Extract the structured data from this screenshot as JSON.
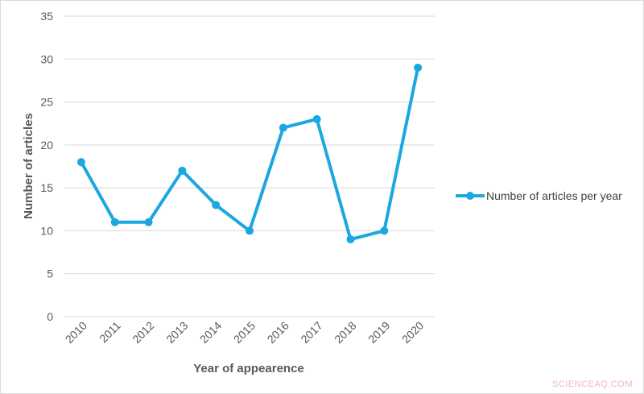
{
  "chart_data": {
    "type": "line",
    "title": "",
    "xlabel": "Year of appearence",
    "ylabel": "Number of articles",
    "categories": [
      "2010",
      "2011",
      "2012",
      "2013",
      "2014",
      "2015",
      "2016",
      "2017",
      "2018",
      "2019",
      "2020"
    ],
    "series": [
      {
        "name": "Number of articles per year",
        "values": [
          18,
          11,
          11,
          17,
          13,
          10,
          22,
          23,
          9,
          10,
          29
        ],
        "color": "#1ba8e0"
      }
    ],
    "ylim": [
      0,
      35
    ],
    "yticks": [
      0,
      5,
      10,
      15,
      20,
      25,
      30,
      35
    ],
    "grid": true,
    "legend_position": "right"
  },
  "legend": {
    "label": "Number of articles per year"
  },
  "axes": {
    "xlabel": "Year of appearence",
    "ylabel": "Number of articles"
  },
  "watermark": "SCIENCEAQ.COM",
  "colors": {
    "line": "#1ba8e0",
    "grid": "#d9d9d9",
    "text": "#595959"
  }
}
